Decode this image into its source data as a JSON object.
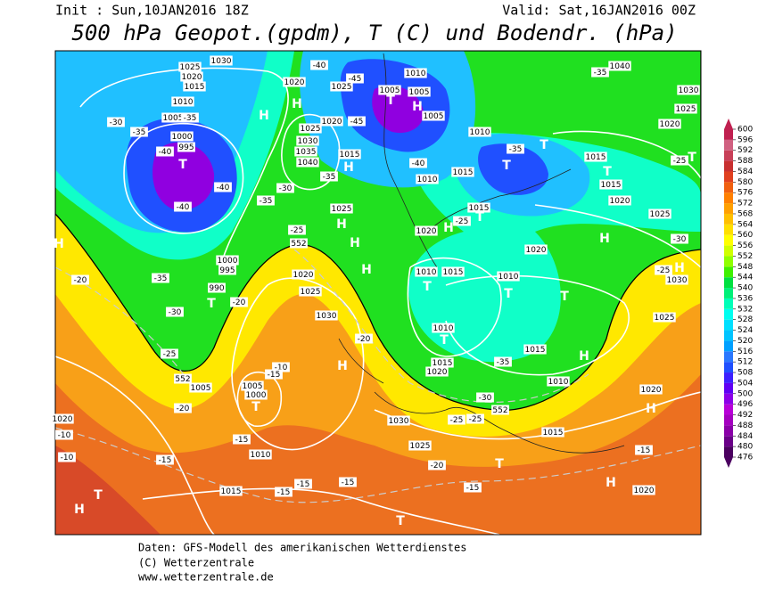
{
  "header": {
    "init": "Init : Sun,10JAN2016 18Z",
    "valid": "Valid: Sat,16JAN2016 00Z",
    "title": "500 hPa Geopot.(gpdm), T (C) und Bodendr. (hPa)"
  },
  "map": {
    "labels": [
      "1030",
      "1025",
      "1020",
      "1015",
      "H",
      "1010",
      "1005",
      "-35",
      "1000",
      "995",
      "T",
      "-40",
      "-40",
      "-40",
      "-35",
      "-30",
      "1020",
      "H",
      "-40",
      "1025",
      "-45",
      "T",
      "H",
      "1005",
      "1005",
      "1010",
      "1005",
      "1020",
      "-45",
      "1025",
      "1030",
      "1035",
      "1040",
      "1015",
      "H",
      "-35",
      "-30",
      "-35",
      "1010",
      "-40",
      "1010",
      "-35",
      "T",
      "T",
      "1015",
      "1015",
      "T",
      "1015",
      "-25",
      "T",
      "1020",
      "1025",
      "H",
      "-30",
      "1040",
      "-35",
      "1030",
      "1025",
      "1020",
      "1025",
      "H",
      "-25",
      "552",
      "H",
      "1020",
      "H",
      "1015",
      "-25",
      "T",
      "1020",
      "H",
      "1020",
      "1025",
      "1010",
      "1015",
      "T",
      "1010",
      "T",
      "T",
      "H",
      "-25",
      "1030",
      "1025",
      "1030",
      "-20",
      "1010",
      "T",
      "1015",
      "1020",
      "1015",
      "-35",
      "1010",
      "1000",
      "995",
      "990",
      "T",
      "-20",
      "-35",
      "-30",
      "-25",
      "H",
      "-20",
      "552",
      "1005",
      "-10",
      "-15",
      "1005",
      "1000",
      "T",
      "H",
      "-30",
      "552",
      "-25",
      "-25",
      "1030",
      "1015",
      "1020",
      "H",
      "-20",
      "-15",
      "1010",
      "-15",
      "1020",
      "-10",
      "-10",
      "T",
      "H",
      "1015",
      "-15",
      "-15",
      "-15",
      "1025",
      "-20",
      "T",
      "-15",
      "-15",
      "H",
      "1020",
      "T",
      "H"
    ]
  },
  "colorbar": {
    "ticks": [
      476,
      480,
      484,
      488,
      492,
      496,
      500,
      504,
      508,
      512,
      516,
      520,
      524,
      528,
      532,
      536,
      540,
      544,
      548,
      552,
      556,
      560,
      564,
      568,
      572,
      576,
      580,
      584,
      588,
      592,
      596,
      600
    ],
    "colors": [
      "#4b0060",
      "#6a0088",
      "#8a00a8",
      "#a400c0",
      "#b800d8",
      "#8c00e8",
      "#6000f4",
      "#3c20ff",
      "#2050ff",
      "#2a78ff",
      "#00a0ff",
      "#00c4ff",
      "#00e0ff",
      "#00fff0",
      "#00ffb8",
      "#00f078",
      "#00e040",
      "#40f000",
      "#90ff00",
      "#d0ff00",
      "#ffff00",
      "#ffe000",
      "#ffc000",
      "#ffa000",
      "#ff8000",
      "#f06010",
      "#e04020",
      "#c83030",
      "#c84058",
      "#d06080",
      "#c02050"
    ]
  },
  "footer": [
    "Daten: GFS-Modell des amerikanischen Wetterdienstes",
    "(C) Wetterzentrale",
    "www.wetterzentrale.de"
  ]
}
